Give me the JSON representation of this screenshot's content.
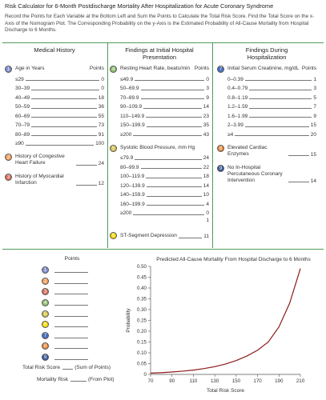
{
  "header": {
    "title": "Risk Calculator for 6-Month Postdischarge Mortality After Hospitalization for Acute Coronary Syndrome",
    "instructions": "Record the Points for Each Variable at the Bottom Left and Sum the Points to Calculate the Total Risk Score. Find the Total Score on the x-Axis of the Nomogram Plot. The Corresponding Probability on the y-Axis is the Estimated Probability of All-Cause Mortality from Hospital Discharge to 6 Months."
  },
  "columns": [
    {
      "heading": "Medical History",
      "items": [
        {
          "number": "1",
          "color": "#8290cc",
          "label": "Age in Years",
          "points_heading": "Points",
          "rows": [
            {
              "range": "≤29",
              "points": 0
            },
            {
              "range": "30–39",
              "points": 0
            },
            {
              "range": "40–49",
              "points": 18
            },
            {
              "range": "50–59",
              "points": 36
            },
            {
              "range": "60–69",
              "points": 55
            },
            {
              "range": "70–79",
              "points": 73
            },
            {
              "range": "80–89",
              "points": 91
            },
            {
              "range": "≥90",
              "points": 100
            }
          ]
        },
        {
          "number": "2",
          "color": "#f2a060",
          "label": "History of Congestive Heart Failure",
          "points": 24
        },
        {
          "number": "3",
          "color": "#d8705c",
          "label": "History of Myocardial Infarction",
          "points": 12
        }
      ]
    },
    {
      "heading": "Findings at Initial Hospital Presentation",
      "items": [
        {
          "number": "4",
          "color": "#90bf72",
          "label": "Resting Heart Rate, beats/min",
          "points_heading": "Points",
          "rows": [
            {
              "range": "≤49.9",
              "points": 0
            },
            {
              "range": "50–69.9",
              "points": 3
            },
            {
              "range": "70–89.9",
              "points": 9
            },
            {
              "range": "90–109.9",
              "points": 14
            },
            {
              "range": "110–149.9",
              "points": 23
            },
            {
              "range": "150–199.9",
              "points": 35
            },
            {
              "range": "≥200",
              "points": 43
            }
          ]
        },
        {
          "number": "5",
          "color": "#d6c24e",
          "label": "Systolic Blood Pressure, mm Hg",
          "rows": [
            {
              "range": "≤79.9",
              "points": 24
            },
            {
              "range": "80–99.9",
              "points": 22
            },
            {
              "range": "100–119.9",
              "points": 18
            },
            {
              "range": "120–139.9",
              "points": 14
            },
            {
              "range": "140–159.9",
              "points": 10
            },
            {
              "range": "160–199.9",
              "points": 4
            },
            {
              "range": "≥200",
              "points": 0
            }
          ],
          "trailing_mark": 1
        },
        {
          "number": "6",
          "color": "#f5d800",
          "label": "ST-Segment Depression",
          "points": 11
        }
      ]
    },
    {
      "heading": "Findings During Hospitalization",
      "items": [
        {
          "number": "7",
          "color": "#4a6fc0",
          "label": "Initial Serum Creatinine, mg/dL",
          "points_heading": "Points",
          "rows": [
            {
              "range": "0–0.39",
              "points": 1
            },
            {
              "range": "0.4–0.79",
              "points": 3
            },
            {
              "range": "0.8–1.19",
              "points": 5
            },
            {
              "range": "1.2–1.59",
              "points": 7
            },
            {
              "range": "1.6–1.99",
              "points": 9
            },
            {
              "range": "2–3.99",
              "points": 15
            },
            {
              "range": "≥4",
              "points": 20
            }
          ]
        },
        {
          "number": "8",
          "color": "#e8883a",
          "label": "Elevated Cardiac Enzymes",
          "points": 15
        },
        {
          "number": "9",
          "color": "#3a5a9a",
          "label": "No In-Hospital Percutaneous Coronary Intervention",
          "points": 14
        }
      ]
    }
  ],
  "worksheet": {
    "heading": "Points",
    "markers": [
      {
        "number": "1",
        "color": "#8290cc"
      },
      {
        "number": "2",
        "color": "#f2a060"
      },
      {
        "number": "3",
        "color": "#d8705c"
      },
      {
        "number": "4",
        "color": "#90bf72"
      },
      {
        "number": "5",
        "color": "#d6c24e"
      },
      {
        "number": "6",
        "color": "#f5d800"
      },
      {
        "number": "7",
        "color": "#4a6fc0"
      },
      {
        "number": "8",
        "color": "#e8883a"
      },
      {
        "number": "9",
        "color": "#3a5a9a"
      }
    ],
    "total_label": "Total Risk Score",
    "total_note": "(Sum of Points)",
    "risk_label": "Mortality Risk",
    "risk_note": "(From Plot)"
  },
  "chart_data": {
    "type": "line",
    "title": "Predicted All-Cause Mortality From Hospital Discharge to 6 Months",
    "x_label": "Total Risk Score",
    "y_label": "Probability",
    "color": "#8b1a1a",
    "x": [
      70,
      80,
      90,
      100,
      110,
      120,
      130,
      140,
      150,
      160,
      170,
      180,
      190,
      200,
      210
    ],
    "values": [
      0.006,
      0.008,
      0.011,
      0.015,
      0.02,
      0.027,
      0.036,
      0.048,
      0.064,
      0.085,
      0.112,
      0.15,
      0.22,
      0.33,
      0.49
    ],
    "xlim": [
      70,
      210
    ],
    "xticks": [
      70,
      90,
      110,
      130,
      150,
      170,
      190,
      210
    ],
    "ylim": [
      0,
      0.5
    ],
    "yticks": [
      0,
      0.05,
      {
        "value": 0.1,
        "label": "0.10"
      },
      0.15,
      {
        "value": 0.2,
        "label": "0.20"
      },
      0.25,
      {
        "value": 0.3,
        "label": "0.30"
      },
      0.35,
      {
        "value": 0.4,
        "label": "0.40"
      },
      0.45,
      {
        "value": 0.5,
        "label": "0.50"
      }
    ]
  }
}
